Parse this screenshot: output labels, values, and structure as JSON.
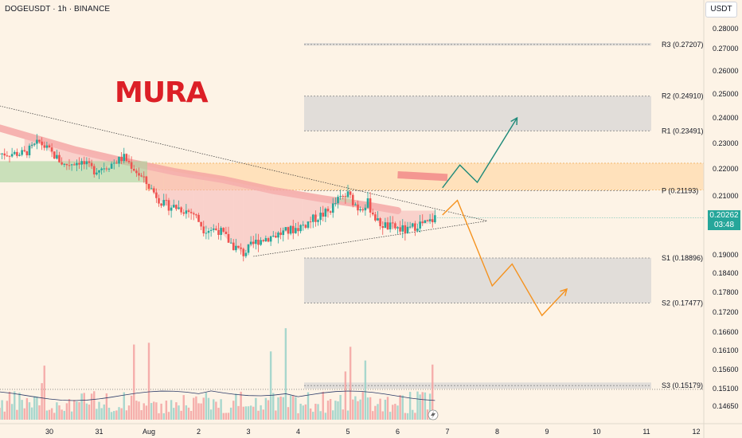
{
  "header": {
    "symbol": "DOGEUSDT",
    "interval": "1h",
    "exchange": "BINANCE",
    "currency": "USDT"
  },
  "brand": "MURA",
  "last_price": {
    "value": "0.20262",
    "countdown": "03:48",
    "color": "#26a69a"
  },
  "colors": {
    "background": "#fdf3e6",
    "bull": "#26a69a",
    "bear": "#ef5350",
    "zone_gray": "#dcd8d6",
    "zone_orange": "#ffd9a8",
    "ma_red": "#f4a3a3",
    "arrow_up": "#1f8a7a",
    "arrow_down": "#f5921e"
  },
  "chart_data": {
    "type": "candlestick",
    "y_axis": {
      "ticks": [
        "0.28000",
        "0.27000",
        "0.26000",
        "0.25000",
        "0.24000",
        "0.23000",
        "0.22000",
        "0.21000",
        "0.20000",
        "0.19000",
        "0.18400",
        "0.17800",
        "0.17200",
        "0.16600",
        "0.16100",
        "0.15600",
        "0.15100",
        "0.14650"
      ]
    },
    "x_axis": {
      "ticks": [
        "30",
        "31",
        "Aug",
        "2",
        "3",
        "4",
        "5",
        "6",
        "7",
        "8",
        "9",
        "10",
        "11",
        "12"
      ]
    },
    "levels": [
      {
        "label": "R3",
        "value": "0.27207"
      },
      {
        "label": "R2",
        "value": "0.24910"
      },
      {
        "label": "R1",
        "value": "0.23491"
      },
      {
        "label": "P",
        "value": "0.21193"
      },
      {
        "label": "S1",
        "value": "0.18896"
      },
      {
        "label": "S2",
        "value": "0.17477"
      },
      {
        "label": "S3",
        "value": "0.15179"
      }
    ],
    "zones": [
      {
        "name": "R3 zone",
        "from": 0.2715,
        "to": 0.2728,
        "color": "gray"
      },
      {
        "name": "R2-R1 zone",
        "from": 0.2349,
        "to": 0.2491,
        "color": "gray"
      },
      {
        "name": "supply zone",
        "from": 0.2122,
        "to": 0.2222,
        "color": "orange"
      },
      {
        "name": "S1-S2 zone",
        "from": 0.1748,
        "to": 0.189,
        "color": "gray"
      },
      {
        "name": "S3 zone",
        "from": 0.151,
        "to": 0.1526,
        "color": "gray"
      }
    ],
    "price_path": [
      {
        "d": 29.5,
        "p": 0.226
      },
      {
        "d": 29.8,
        "p": 0.2305
      },
      {
        "d": 30.0,
        "p": 0.227
      },
      {
        "d": 30.3,
        "p": 0.2215
      },
      {
        "d": 30.6,
        "p": 0.223
      },
      {
        "d": 30.9,
        "p": 0.2195
      },
      {
        "d": 31.2,
        "p": 0.2215
      },
      {
        "d": 31.5,
        "p": 0.2245
      },
      {
        "d": 31.75,
        "p": 0.219
      },
      {
        "d": 32.0,
        "p": 0.2135
      },
      {
        "d": 32.3,
        "p": 0.207
      },
      {
        "d": 32.6,
        "p": 0.206
      },
      {
        "d": 32.9,
        "p": 0.204
      },
      {
        "d": 33.1,
        "p": 0.199
      },
      {
        "d": 33.4,
        "p": 0.1985
      },
      {
        "d": 33.7,
        "p": 0.193
      },
      {
        "d": 33.9,
        "p": 0.1905
      },
      {
        "d": 34.2,
        "p": 0.195
      },
      {
        "d": 34.5,
        "p": 0.1965
      },
      {
        "d": 34.8,
        "p": 0.198
      },
      {
        "d": 35.1,
        "p": 0.2
      },
      {
        "d": 35.4,
        "p": 0.203
      },
      {
        "d": 35.6,
        "p": 0.2045
      },
      {
        "d": 35.8,
        "p": 0.2085
      },
      {
        "d": 36.0,
        "p": 0.2105
      },
      {
        "d": 36.2,
        "p": 0.206
      },
      {
        "d": 36.4,
        "p": 0.2075
      },
      {
        "d": 36.6,
        "p": 0.201
      },
      {
        "d": 36.8,
        "p": 0.1995
      },
      {
        "d": 37.0,
        "p": 0.199
      },
      {
        "d": 37.2,
        "p": 0.198
      },
      {
        "d": 37.4,
        "p": 0.2005
      },
      {
        "d": 37.6,
        "p": 0.2005
      },
      {
        "d": 37.75,
        "p": 0.2026
      }
    ],
    "forecast_up": [
      {
        "d": 37.9,
        "p": 0.213
      },
      {
        "d": 38.25,
        "p": 0.2215
      },
      {
        "d": 38.6,
        "p": 0.215
      },
      {
        "d": 39.4,
        "p": 0.24
      }
    ],
    "forecast_down": [
      {
        "d": 37.9,
        "p": 0.2035
      },
      {
        "d": 38.2,
        "p": 0.2085
      },
      {
        "d": 38.9,
        "p": 0.18
      },
      {
        "d": 39.3,
        "p": 0.187
      },
      {
        "d": 39.9,
        "p": 0.171
      },
      {
        "d": 40.4,
        "p": 0.179
      }
    ],
    "trendlines": [
      {
        "from": {
          "d": 29.0,
          "p": 0.245
        },
        "to": {
          "d": 38.8,
          "p": 0.2015
        }
      },
      {
        "from": {
          "d": 34.1,
          "p": 0.1895
        },
        "to": {
          "d": 38.8,
          "p": 0.2015
        }
      }
    ],
    "moving_average": [
      {
        "d": 29.0,
        "p": 0.236
      },
      {
        "d": 30.5,
        "p": 0.2275
      },
      {
        "d": 31.5,
        "p": 0.223
      },
      {
        "d": 32.5,
        "p": 0.219
      },
      {
        "d": 33.5,
        "p": 0.216
      },
      {
        "d": 34.5,
        "p": 0.212
      },
      {
        "d": 35.5,
        "p": 0.209
      },
      {
        "d": 36.5,
        "p": 0.2065
      },
      {
        "d": 37.0,
        "p": 0.205
      }
    ],
    "ma_projection": [
      {
        "d": 37.0,
        "p": 0.2178
      },
      {
        "d": 38.0,
        "p": 0.2168
      }
    ]
  }
}
